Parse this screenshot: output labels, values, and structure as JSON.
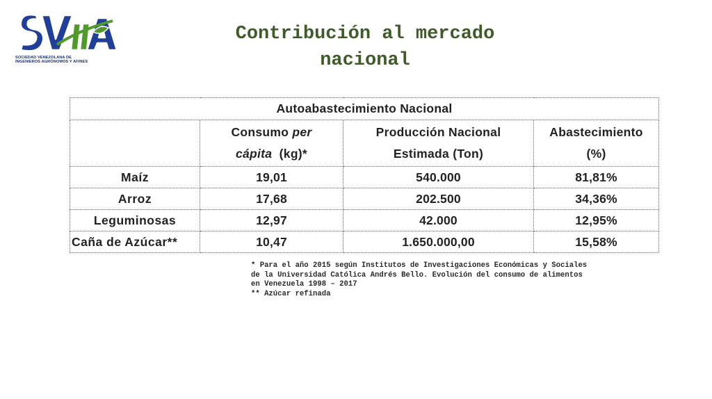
{
  "logo": {
    "text": "SVIIA",
    "caption_line1": "SOCIEDAD VENEZOLANA DE",
    "caption_line2": "INGENIEROS AGRÓNOMOS Y AFINES",
    "colors": {
      "blue": "#1f3f99",
      "green": "#4f9a2a",
      "outline": "#ffffff"
    }
  },
  "title": {
    "line1": "Contribución al mercado",
    "line2": "nacional",
    "color": "#3f5b2a"
  },
  "table": {
    "caption": "Autoabastecimiento Nacional",
    "headers": {
      "crop": "",
      "consumo_line1": "Consumo ",
      "consumo_italic1": "per",
      "consumo_italic2": "cápita",
      "consumo_line2_rest": "  (kg)*",
      "produccion_line1": "Producción Nacional",
      "produccion_line2": "Estimada (Ton)",
      "abastecimiento_line1": "Abastecimiento",
      "abastecimiento_line2": "(%)"
    },
    "rows": [
      {
        "crop": "Maíz",
        "consumo": "19,01",
        "produccion": "540.000",
        "abastecimiento": "81,81%"
      },
      {
        "crop": "Arroz",
        "consumo": "17,68",
        "produccion": "202.500",
        "abastecimiento": "34,36%"
      },
      {
        "crop": "Leguminosas",
        "consumo": "12,97",
        "produccion": "42.000",
        "abastecimiento": "12,95%"
      },
      {
        "crop": "Caña de Azúcar**",
        "consumo": "10,47",
        "produccion": "1.650.000,00",
        "abastecimiento": "15,58%"
      }
    ]
  },
  "notes": {
    "line1": "* Para el año 2015 según Institutos de Investigaciones Económicas y Sociales",
    "line2": "de la Universidad Católica Andrés Bello. Evolución del consumo de alimentos",
    "line3": "en Venezuela 1998 – 2017",
    "line4": "** Azúcar refinada"
  }
}
